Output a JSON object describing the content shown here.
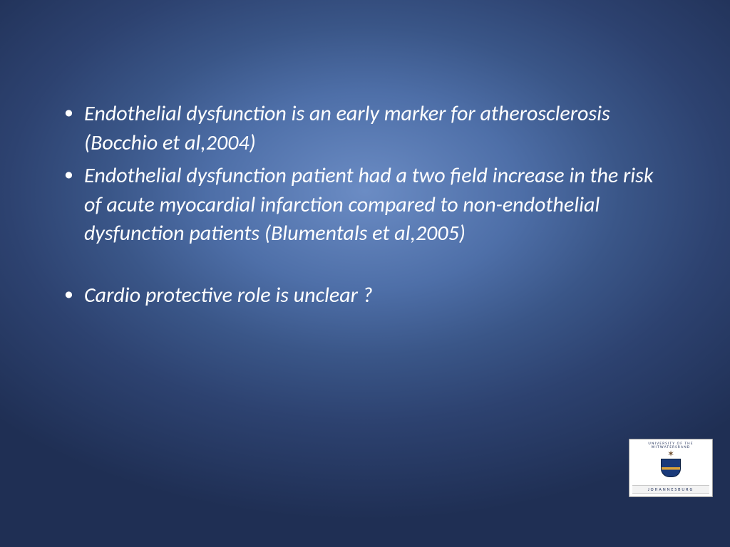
{
  "slide": {
    "background": {
      "type": "radial-gradient",
      "center_color": "#6b8cc4",
      "edge_color": "#1f2f54"
    },
    "text_color": "#ffffff",
    "font_style": "italic",
    "font_size_pt": 24,
    "bullets": [
      {
        "text": "Endothelial dysfunction is an early marker for atherosclerosis (Bocchio et al,2004)",
        "gap_before": false
      },
      {
        "text": "Endothelial dysfunction patient had a two field increase in the risk of acute myocardial infarction compared to non-endothelial dysfunction patients (Blumentals et al,2005)",
        "gap_before": false
      },
      {
        "text": "Cardio protective role is unclear ?",
        "gap_before": true
      }
    ]
  },
  "logo": {
    "top_text": "UNIVERSITY OF THE WITWATERSRAND",
    "bottom_text": "JOHANNESBURG",
    "colors": {
      "background": "#ffffff",
      "text": "#1a2a55",
      "shield_blue": "#1a3a7a",
      "shield_gold": "#d9a23a"
    }
  }
}
